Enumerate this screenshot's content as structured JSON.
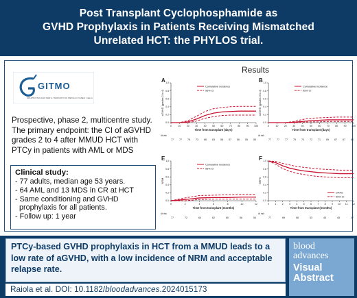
{
  "title": {
    "lines": [
      "Post Transplant Cyclophosphamide as",
      "GVHD Prophylaxis in Patients Receiving Mismatched",
      "Unrelated HCT: the PHYLOS trial."
    ]
  },
  "logo": {
    "text": "GITMO",
    "tagline": "GRUPPO ITALIANO PER IL TRAPIANTO DI MIDOLLO OSSEO, CELLULE STAMINALI EMOPOIETICHE E TERAPIA CELLULARE"
  },
  "description": "Prospective, phase 2, multicentre study. The primary endpoint: the CI of aGVHD grades 2 to 4 after MMUD HCT with PTCy in patients with AML or MDS",
  "clinical": {
    "heading": "Clinical study:",
    "items": [
      "- 77 adults, median age 53 years.",
      "- 64 AML and 13 MDS in CR at HCT",
      "- Same conditioning and GVHD",
      "  prophylaxis for all patients.",
      "- Follow up: 1 year"
    ]
  },
  "results_title": "Results",
  "chart_data": [
    {
      "panel": "A",
      "type": "line",
      "ylabel": "aGVHD (grades 2 to 4)",
      "xlabel": "Time from transplant (days)",
      "x": [
        0,
        10,
        20,
        30,
        40,
        50,
        60,
        70,
        80,
        90,
        100
      ],
      "xticks": [
        "0",
        "10",
        "20",
        "30",
        "40",
        "50",
        "60",
        "70",
        "80",
        "90",
        "100"
      ],
      "yticks": [
        "0.0",
        "0.2",
        "0.4",
        "0.6",
        "0.8",
        "1.0"
      ],
      "ylim": [
        0,
        1
      ],
      "series": [
        {
          "name": "Cumulative incidence",
          "style": "solid",
          "values": [
            0,
            0,
            0.02,
            0.09,
            0.18,
            0.24,
            0.27,
            0.28,
            0.29,
            0.29,
            0.29
          ]
        },
        {
          "name": "95% CI",
          "style": "dashed",
          "values": [
            0,
            0,
            0.05,
            0.16,
            0.28,
            0.35,
            0.38,
            0.4,
            0.41,
            0.41,
            0.41
          ]
        },
        {
          "name": "",
          "style": "dashed",
          "values": [
            0,
            0,
            0,
            0.04,
            0.11,
            0.15,
            0.18,
            0.19,
            0.19,
            0.19,
            0.19
          ]
        }
      ],
      "at_risk_label": "At risk",
      "at_risk": [
        "77",
        "77",
        "76",
        "73",
        "68",
        "63",
        "58",
        "57",
        "56",
        "55",
        "55"
      ],
      "legend": "top-right"
    },
    {
      "panel": "B",
      "type": "line",
      "ylabel": "aGVHD (grades 3 to 4)",
      "xlabel": "Time from transplant (days)",
      "x": [
        0,
        10,
        20,
        30,
        40,
        50,
        60,
        70,
        80,
        90,
        100
      ],
      "xticks": [
        "0",
        "10",
        "20",
        "30",
        "40",
        "50",
        "60",
        "70",
        "80",
        "90",
        "100"
      ],
      "yticks": [
        "0.0",
        "0.2",
        "0.4",
        "0.6",
        "0.8",
        "1.0"
      ],
      "ylim": [
        0,
        1
      ],
      "series": [
        {
          "name": "Cumulative incidence",
          "style": "solid",
          "values": [
            0,
            0,
            0,
            0.01,
            0.03,
            0.05,
            0.06,
            0.07,
            0.07,
            0.07,
            0.07
          ]
        },
        {
          "name": "95% CI",
          "style": "dashed",
          "values": [
            0,
            0,
            0,
            0.03,
            0.08,
            0.11,
            0.12,
            0.13,
            0.14,
            0.14,
            0.14
          ]
        },
        {
          "name": "",
          "style": "dashed",
          "values": [
            0,
            0,
            0,
            0,
            0.01,
            0.02,
            0.02,
            0.03,
            0.03,
            0.03,
            0.03
          ]
        }
      ],
      "at_risk_label": "At risk",
      "at_risk": [
        "77",
        "77",
        "77",
        "75",
        "74",
        "72",
        "71",
        "69",
        "67",
        "67",
        "64"
      ],
      "legend": "top-right"
    },
    {
      "panel": "E",
      "type": "line",
      "ylabel": "NRM",
      "xlabel": "Time from transplant (months)",
      "x": [
        0,
        2,
        4,
        6,
        8,
        10,
        12
      ],
      "xticks": [
        "0",
        "2",
        "4",
        "6",
        "8",
        "10",
        "12"
      ],
      "yticks": [
        "0.0",
        "0.2",
        "0.4",
        "0.6",
        "0.8",
        "1.0"
      ],
      "ylim": [
        0,
        1
      ],
      "series": [
        {
          "name": "Cumulative incidence",
          "style": "solid",
          "values": [
            0,
            0.03,
            0.07,
            0.08,
            0.08,
            0.09,
            0.09
          ]
        },
        {
          "name": "95% CI",
          "style": "dashed",
          "values": [
            0,
            0.07,
            0.13,
            0.14,
            0.15,
            0.16,
            0.16
          ]
        },
        {
          "name": "",
          "style": "dashed",
          "values": [
            0,
            0,
            0.03,
            0.04,
            0.04,
            0.04,
            0.04
          ]
        }
      ],
      "at_risk_label": "At risk",
      "at_risk": [
        "77",
        "72",
        "64",
        "62",
        "60",
        "56",
        "54"
      ],
      "legend": "top-right"
    },
    {
      "panel": "F",
      "type": "line",
      "ylabel": "GRFS",
      "xlabel": "Time from transplant (months)",
      "x": [
        0,
        1,
        2,
        3,
        4,
        5,
        6,
        7,
        8,
        9,
        10,
        11,
        12
      ],
      "xticks": [
        "0",
        "1",
        "2",
        "3",
        "4",
        "5",
        "6",
        "7",
        "8",
        "9",
        "10",
        "11",
        "12"
      ],
      "yticks": [
        "0.0",
        "0.2",
        "0.4",
        "0.6",
        "0.8",
        "1.0"
      ],
      "ylim": [
        0,
        1
      ],
      "series": [
        {
          "name": "GRFS",
          "style": "solid",
          "values": [
            1,
            0.96,
            0.88,
            0.82,
            0.78,
            0.75,
            0.73,
            0.71,
            0.7,
            0.69,
            0.68,
            0.68,
            0.68
          ]
        },
        {
          "name": "95% CI",
          "style": "dashed",
          "values": [
            1,
            0.99,
            0.94,
            0.9,
            0.86,
            0.84,
            0.82,
            0.8,
            0.79,
            0.78,
            0.77,
            0.77,
            0.77
          ]
        },
        {
          "name": "",
          "style": "dashed",
          "values": [
            1,
            0.92,
            0.81,
            0.74,
            0.69,
            0.66,
            0.63,
            0.61,
            0.6,
            0.59,
            0.58,
            0.58,
            0.58
          ]
        }
      ],
      "at_risk_label": "At risk",
      "at_risk": [
        "77",
        "69",
        "58",
        "53",
        "45",
        "45",
        "37"
      ],
      "legend": "bottom-right"
    }
  ],
  "summary": "PTCy-based GVHD prophylaxis in HCT from a MMUD leads to a low rate of aGVHD, with a low incidence of NRM and acceptable relapse rate.",
  "citation": {
    "prefix": "Raiola et al. DOI: 10.1182/",
    "link": "bloodadvances",
    "suffix": ".2024015173"
  },
  "brand": {
    "line1": "blood",
    "line2": "advances",
    "line3": "Visual",
    "line4": "Abstract"
  },
  "colors": {
    "navy": "#0d3b66",
    "series": "#c8102e",
    "brand_panel": "#7aa8d2"
  }
}
